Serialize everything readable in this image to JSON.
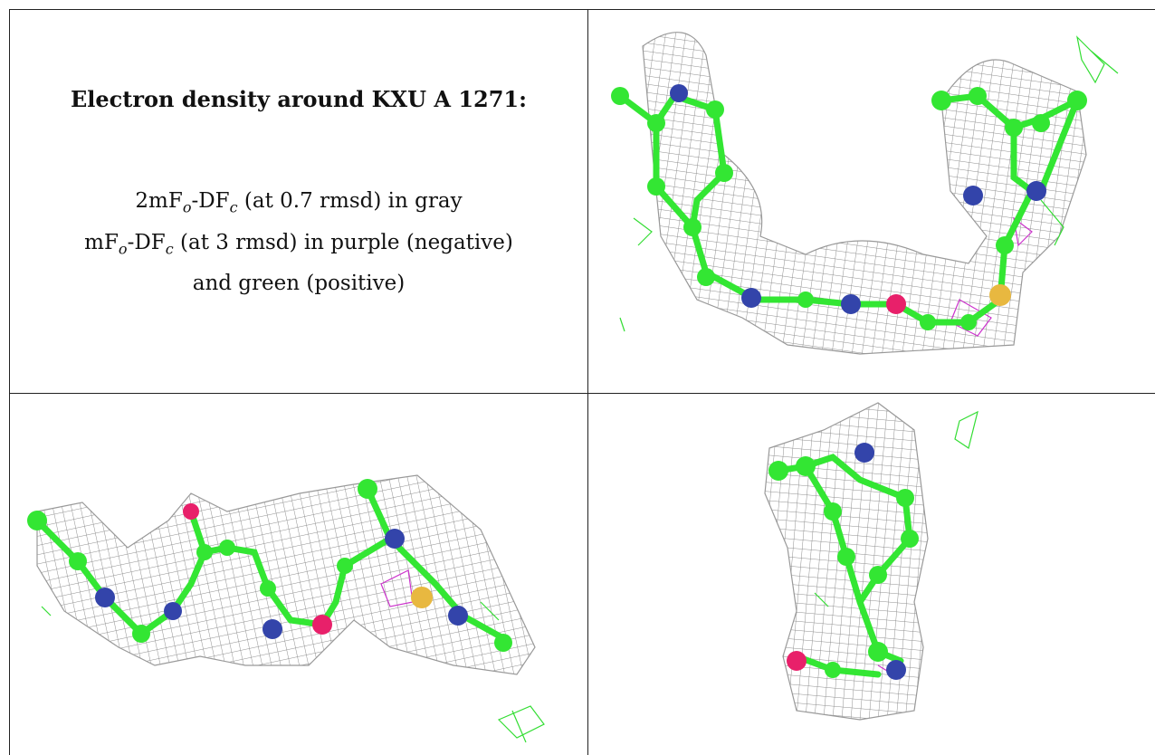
{
  "title": "Electron density around KXU A 1271:",
  "legend": {
    "line1": {
      "prefix": "2mF",
      "sub1": "o",
      "mid": "-DF",
      "sub2": "c",
      "suffix": " (at 0.7 rmsd) in gray"
    },
    "line2": {
      "prefix": "mF",
      "sub1": "o",
      "mid": "-DF",
      "sub2": "c",
      "suffix": " (at 3 rmsd) in purple (negative)"
    },
    "line3": "and green (positive)"
  },
  "colors": {
    "mesh": "#8f8f8f",
    "carbon": "#33e633",
    "nitrogen": "#3344aa",
    "oxygen": "#e8206a",
    "sulfur": "#e8b840",
    "negative": "#cc33cc",
    "positive": "#33dd33"
  },
  "panels": [
    {
      "name": "view-1",
      "description": "ligand-front-view"
    },
    {
      "name": "view-2",
      "description": "ligand-side-view"
    },
    {
      "name": "view-3",
      "description": "ligand-end-view"
    }
  ]
}
